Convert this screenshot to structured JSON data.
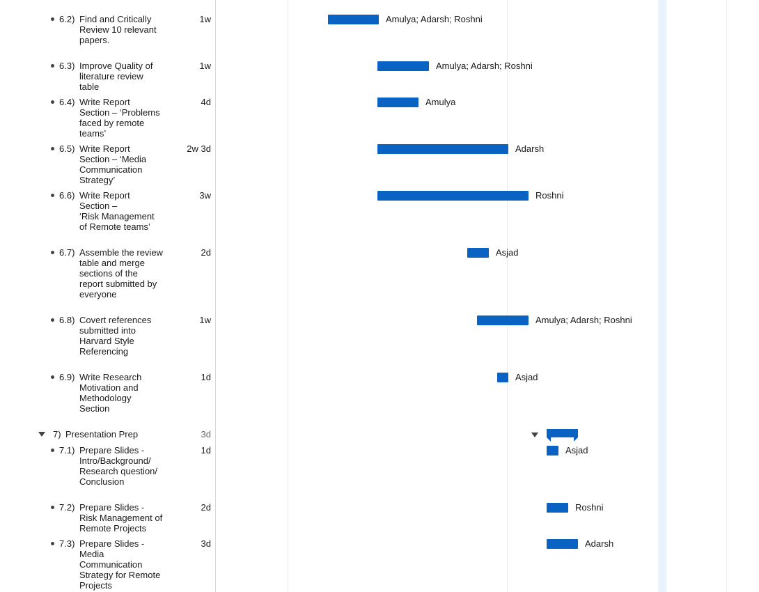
{
  "tasks": [
    {
      "num": "6.2)",
      "name": "Find and Critically\nReview 10 relevant\npapers.",
      "duration": "1w",
      "resources": "Amulya; Adarsh; Roshni"
    },
    {
      "num": "6.3)",
      "name": "Improve Quality of\nliterature review\ntable",
      "duration": "1w",
      "resources": "Amulya; Adarsh; Roshni"
    },
    {
      "num": "6.4)",
      "name": " Write Report\nSection – ‘Problems\nfaced by remote\nteams’",
      "duration": "4d",
      "resources": "Amulya"
    },
    {
      "num": "6.5)",
      "name": "Write Report\nSection – ‘Media\nCommunication\nStrategy’",
      "duration": "2w 3d",
      "resources": "Adarsh"
    },
    {
      "num": "6.6)",
      "name": "Write Report\nSection –\n‘Risk Management\nof Remote teams’",
      "duration": "3w",
      "resources": "Roshni"
    },
    {
      "num": "6.7)",
      "name": "Assemble the review\ntable and merge\nsections of the\nreport submitted by\neveryone",
      "duration": "2d",
      "resources": "Asjad"
    },
    {
      "num": "6.8)",
      "name": "Covert references\nsubmitted into\nHarvard Style\nReferencing",
      "duration": "1w",
      "resources": "Amulya; Adarsh; Roshni"
    },
    {
      "num": "6.9)",
      "name": "Write Research\nMotivation and\nMethodology\nSection",
      "duration": "1d",
      "resources": "Asjad"
    }
  ],
  "summary": {
    "num": "7)",
    "name": "Presentation Prep",
    "duration": "3d"
  },
  "subtasks": [
    {
      "num": "7.1)",
      "name": "Prepare Slides -\nIntro/Background/\nResearch question/\nConclusion",
      "duration": "1d",
      "resources": "Asjad"
    },
    {
      "num": "7.2)",
      "name": "Prepare Slides -\nRisk Management of\nRemote Projects",
      "duration": "2d",
      "resources": "Roshni"
    },
    {
      "num": "7.3)",
      "name": "Prepare Slides -\nMedia\nCommunication\nStrategy for Remote\nProjects",
      "duration": "3d",
      "resources": "Adarsh"
    }
  ],
  "colors": {
    "bar": "#0a62c3",
    "today_band": "#eaf3fd"
  },
  "icons": {
    "expand": "disclosure-triangle-down-icon",
    "bullet": "bullet-icon"
  }
}
